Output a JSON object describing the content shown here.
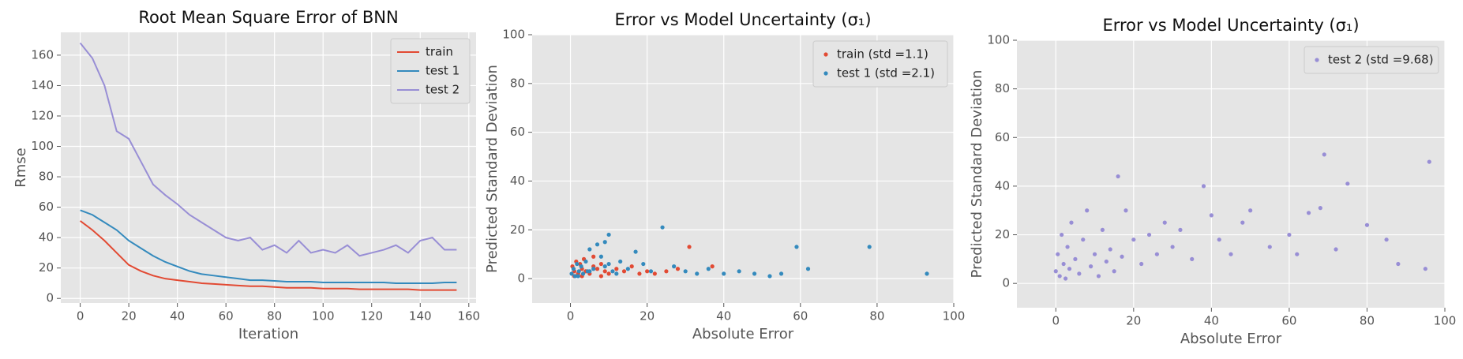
{
  "chart_data": [
    {
      "type": "line",
      "title": "Root Mean Square Error of BNN",
      "x_label": "Iteration",
      "y_label": "Rmse",
      "xlim": [
        -8,
        163
      ],
      "ylim": [
        -3,
        175
      ],
      "xticks": [
        0,
        20,
        40,
        60,
        80,
        100,
        120,
        140,
        160
      ],
      "yticks": [
        0,
        20,
        40,
        60,
        80,
        100,
        120,
        140,
        160
      ],
      "grid": true,
      "legend": "upper right",
      "x": [
        0,
        5,
        10,
        15,
        20,
        25,
        30,
        35,
        40,
        45,
        50,
        55,
        60,
        65,
        70,
        75,
        80,
        85,
        90,
        95,
        100,
        105,
        110,
        115,
        120,
        125,
        130,
        135,
        140,
        145,
        150,
        155
      ],
      "series": [
        {
          "name": "train",
          "color": "#e24a33",
          "values": [
            51,
            45,
            38,
            30,
            22,
            18,
            15,
            13,
            12,
            11,
            10,
            9.5,
            9,
            8.5,
            8,
            8,
            7.5,
            7,
            7,
            7,
            6.5,
            6.5,
            6.5,
            6,
            6,
            6,
            6,
            6,
            5.5,
            5.5,
            5.5,
            5.5
          ]
        },
        {
          "name": "test 1",
          "color": "#348abd",
          "values": [
            58,
            55,
            50,
            45,
            38,
            33,
            28,
            24,
            21,
            18,
            16,
            15,
            14,
            13,
            12,
            12,
            11.5,
            11,
            11,
            11,
            10.5,
            10.5,
            10.5,
            10.5,
            10.5,
            10.5,
            10,
            10,
            10,
            10,
            10.5,
            10.5
          ]
        },
        {
          "name": "test 2",
          "color": "#988ed5",
          "values": [
            168,
            158,
            140,
            110,
            105,
            90,
            75,
            68,
            62,
            55,
            50,
            45,
            40,
            38,
            40,
            32,
            35,
            30,
            38,
            30,
            32,
            30,
            35,
            28,
            30,
            32,
            35,
            30,
            38,
            40,
            32,
            32
          ]
        }
      ]
    },
    {
      "type": "scatter",
      "title": "Error vs Model Uncertainty (σ₁)",
      "x_label": "Absolute Error",
      "y_label": "Predicted Standard Deviation",
      "xlim": [
        -10,
        100
      ],
      "ylim": [
        -10,
        100
      ],
      "xticks": [
        0,
        20,
        40,
        60,
        80,
        100
      ],
      "yticks": [
        0,
        20,
        40,
        60,
        80,
        100
      ],
      "grid": true,
      "legend": "upper right",
      "series": [
        {
          "name": "train  (std =1.1)",
          "color": "#e24a33",
          "x": [
            0.5,
            1,
            1.5,
            2,
            2.5,
            3,
            3.5,
            4,
            5,
            6,
            7,
            8,
            9,
            10,
            12,
            14,
            16,
            18,
            20,
            22,
            25,
            28,
            31,
            37,
            1,
            2,
            3,
            4,
            6,
            8
          ],
          "values": [
            5,
            3,
            7,
            2,
            6,
            4,
            8,
            3,
            2,
            5,
            4,
            6,
            3,
            2,
            4,
            3,
            5,
            2,
            3,
            2,
            3,
            4,
            13,
            5,
            1,
            2,
            1,
            3,
            9,
            1
          ]
        },
        {
          "name": "test 1 (std =2.1)",
          "color": "#348abd",
          "x": [
            0.3,
            0.8,
            1.2,
            1.7,
            2.2,
            2.8,
            3.3,
            4,
            4.5,
            5,
            6,
            7,
            8,
            9,
            10,
            11,
            12,
            13,
            15,
            17,
            19,
            21,
            24,
            27,
            30,
            33,
            36,
            40,
            44,
            48,
            52,
            55,
            59,
            62,
            78,
            93,
            2,
            5,
            10,
            9
          ],
          "values": [
            2,
            4,
            1,
            6,
            3,
            5,
            2,
            7,
            3,
            12,
            4,
            14,
            9,
            5,
            18,
            3,
            2,
            7,
            4,
            11,
            6,
            3,
            21,
            5,
            3,
            2,
            4,
            2,
            3,
            2,
            1,
            2,
            13,
            4,
            13,
            2,
            1,
            3,
            6,
            15
          ]
        }
      ]
    },
    {
      "type": "scatter",
      "title": "Error vs Model Uncertainty (σ₁)",
      "x_label": "Absolute Error",
      "y_label": "Predicted Standard Deviation",
      "xlim": [
        -10,
        100
      ],
      "ylim": [
        -10,
        100
      ],
      "xticks": [
        0,
        20,
        40,
        60,
        80,
        100
      ],
      "yticks": [
        0,
        20,
        40,
        60,
        80,
        100
      ],
      "grid": true,
      "legend": "upper right",
      "series": [
        {
          "name": "test 2 (std =9.68)",
          "color": "#988ed5",
          "x": [
            0,
            0.5,
            1,
            1.5,
            2,
            2.5,
            3,
            3.5,
            4,
            5,
            6,
            7,
            8,
            9,
            10,
            11,
            12,
            13,
            14,
            15,
            16,
            17,
            18,
            20,
            22,
            24,
            26,
            28,
            30,
            32,
            35,
            38,
            40,
            42,
            45,
            48,
            50,
            55,
            60,
            62,
            65,
            68,
            69,
            72,
            75,
            80,
            85,
            88,
            95,
            96
          ],
          "values": [
            5,
            12,
            3,
            20,
            8,
            2,
            15,
            6,
            25,
            10,
            4,
            18,
            30,
            7,
            12,
            3,
            22,
            9,
            14,
            5,
            44,
            11,
            30,
            18,
            8,
            20,
            12,
            25,
            15,
            22,
            10,
            40,
            28,
            18,
            12,
            25,
            30,
            15,
            20,
            12,
            29,
            31,
            53,
            14,
            41,
            24,
            18,
            8,
            6,
            50
          ]
        }
      ]
    }
  ]
}
